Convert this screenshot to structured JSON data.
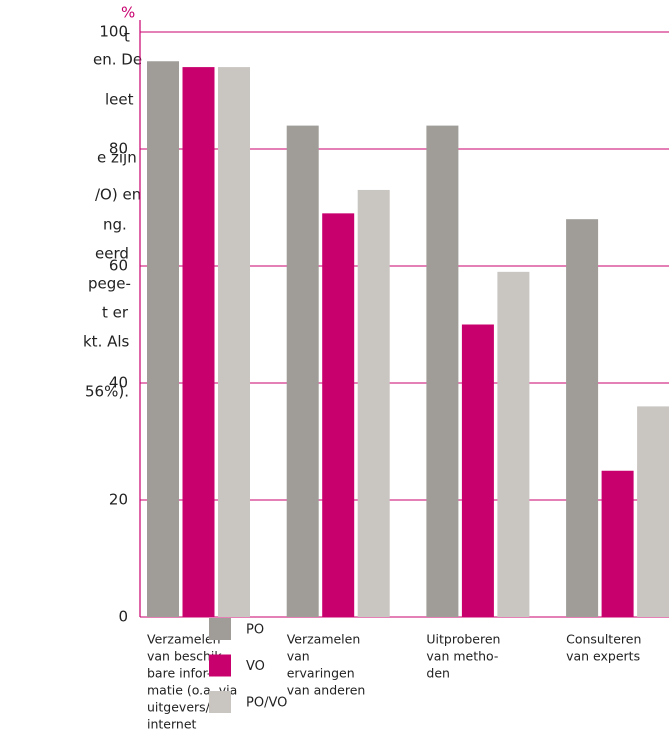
{
  "side_text": [
    "t",
    "en. De",
    "leet",
    "e zijn",
    "/O) en",
    "ng.",
    "eerd",
    "pege-",
    "t er",
    "kt. Als",
    "56%)."
  ],
  "chart_data": {
    "type": "bar",
    "y_label": "%",
    "categories": [
      [
        "Verzamelen",
        "van beschik-",
        "bare infor-",
        "matie (o.a. via",
        "uitgevers/",
        "internet"
      ],
      [
        "Verzamelen",
        "van",
        "ervaringen",
        "van anderen"
      ],
      [
        "Uitproberen",
        "van metho-",
        "den"
      ],
      [
        "Consulteren",
        "van experts"
      ]
    ],
    "series": [
      {
        "name": "PO",
        "color": "#a09d98",
        "values": [
          95,
          84,
          84,
          68
        ]
      },
      {
        "name": "VO",
        "color": "#c8006e",
        "values": [
          94,
          69,
          50,
          25
        ]
      },
      {
        "name": "PO/VO",
        "color": "#c9c5c0",
        "values": [
          94,
          73,
          59,
          36
        ]
      }
    ],
    "ylim": [
      0,
      100
    ],
    "yticks": [
      0,
      20,
      40,
      60,
      80,
      100
    ],
    "grid": true,
    "axis_color": "#c8006e"
  }
}
